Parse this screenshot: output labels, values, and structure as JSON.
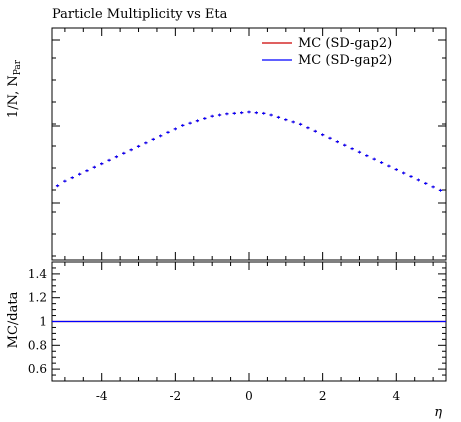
{
  "chart_data": [
    {
      "type": "scatter",
      "title": "Particle Multiplicity vs Eta",
      "ylabel_main": "1/N, N",
      "ylabel_sub": "Par",
      "xlabel": "η",
      "xlim": [
        -5.35,
        5.35
      ],
      "ylim": [
        0.0,
        1.0
      ],
      "y_ticks_shown": false,
      "legend_position": "top-right",
      "series": [
        {
          "name": "MC (SD-gap2)",
          "color": "#cc0000",
          "x": [
            -5.2,
            -5.0,
            -4.8,
            -4.6,
            -4.4,
            -4.2,
            -4.0,
            -3.8,
            -3.6,
            -3.4,
            -3.2,
            -3.0,
            -2.8,
            -2.6,
            -2.4,
            -2.2,
            -2.0,
            -1.8,
            -1.6,
            -1.4,
            -1.2,
            -1.0,
            -0.8,
            -0.6,
            -0.4,
            -0.2,
            0.0,
            0.2,
            0.4,
            0.6,
            0.8,
            1.0,
            1.2,
            1.4,
            1.6,
            1.8,
            2.0,
            2.2,
            2.4,
            2.6,
            2.8,
            3.0,
            3.2,
            3.4,
            3.6,
            3.8,
            4.0,
            4.2,
            4.4,
            4.6,
            4.8,
            5.0,
            5.2
          ],
          "y": [
            0.32,
            0.34,
            0.355,
            0.37,
            0.385,
            0.4,
            0.415,
            0.43,
            0.445,
            0.46,
            0.475,
            0.49,
            0.505,
            0.52,
            0.535,
            0.55,
            0.565,
            0.58,
            0.59,
            0.6,
            0.61,
            0.62,
            0.625,
            0.63,
            0.632,
            0.635,
            0.638,
            0.635,
            0.632,
            0.625,
            0.615,
            0.605,
            0.595,
            0.585,
            0.57,
            0.555,
            0.54,
            0.525,
            0.51,
            0.495,
            0.48,
            0.465,
            0.45,
            0.435,
            0.42,
            0.405,
            0.39,
            0.375,
            0.36,
            0.345,
            0.33,
            0.315,
            0.3
          ]
        },
        {
          "name": "MC (SD-gap2)",
          "color": "#0000ff",
          "x": [
            -5.2,
            -5.0,
            -4.8,
            -4.6,
            -4.4,
            -4.2,
            -4.0,
            -3.8,
            -3.6,
            -3.4,
            -3.2,
            -3.0,
            -2.8,
            -2.6,
            -2.4,
            -2.2,
            -2.0,
            -1.8,
            -1.6,
            -1.4,
            -1.2,
            -1.0,
            -0.8,
            -0.6,
            -0.4,
            -0.2,
            0.0,
            0.2,
            0.4,
            0.6,
            0.8,
            1.0,
            1.2,
            1.4,
            1.6,
            1.8,
            2.0,
            2.2,
            2.4,
            2.6,
            2.8,
            3.0,
            3.2,
            3.4,
            3.6,
            3.8,
            4.0,
            4.2,
            4.4,
            4.6,
            4.8,
            5.0,
            5.2
          ],
          "y": [
            0.32,
            0.34,
            0.355,
            0.37,
            0.385,
            0.4,
            0.415,
            0.43,
            0.445,
            0.46,
            0.475,
            0.49,
            0.505,
            0.52,
            0.535,
            0.55,
            0.565,
            0.58,
            0.59,
            0.6,
            0.61,
            0.62,
            0.625,
            0.63,
            0.632,
            0.635,
            0.638,
            0.635,
            0.632,
            0.625,
            0.615,
            0.605,
            0.595,
            0.585,
            0.57,
            0.555,
            0.54,
            0.525,
            0.51,
            0.495,
            0.48,
            0.465,
            0.45,
            0.435,
            0.42,
            0.405,
            0.39,
            0.375,
            0.36,
            0.345,
            0.33,
            0.315,
            0.3
          ]
        }
      ]
    },
    {
      "type": "line",
      "ylabel": "MC/data",
      "xlabel": "η",
      "xlim": [
        -5.35,
        5.35
      ],
      "ylim": [
        0.5,
        1.5
      ],
      "x_ticks": [
        -4,
        -2,
        0,
        2,
        4
      ],
      "x_tick_labels": [
        "-4",
        "-2",
        "0",
        "2",
        "4"
      ],
      "y_ticks": [
        0.6,
        0.8,
        1.0,
        1.2,
        1.4
      ],
      "y_tick_labels": [
        "0.6",
        "0.8",
        "1",
        "1.2",
        "1.4"
      ],
      "series": [
        {
          "name": "",
          "color": "#cc0000",
          "x": [
            -5.35,
            5.35
          ],
          "y": [
            1.0,
            1.0
          ]
        },
        {
          "name": "",
          "color": "#0000ff",
          "x": [
            -5.35,
            5.35
          ],
          "y": [
            1.0,
            1.0
          ]
        }
      ]
    }
  ]
}
